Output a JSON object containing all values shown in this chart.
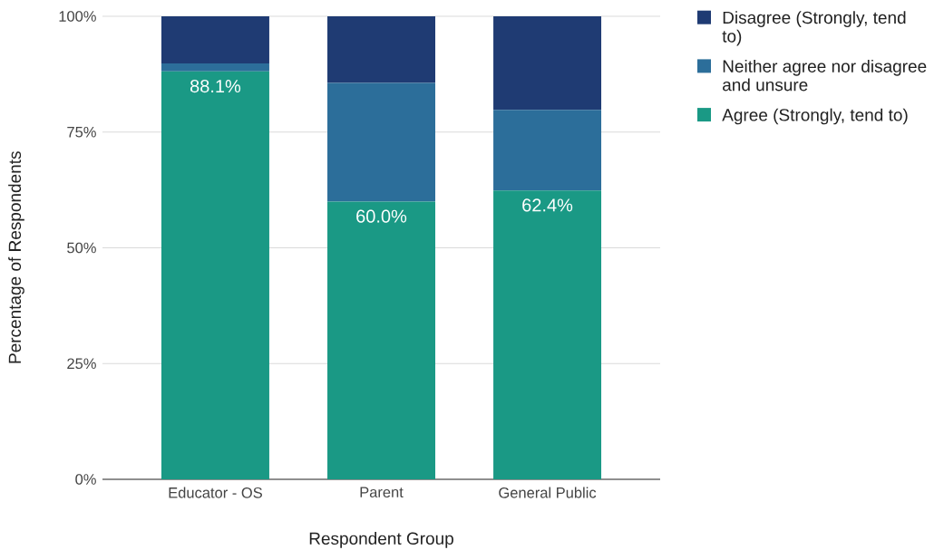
{
  "chart_data": {
    "type": "bar",
    "stacked": true,
    "xlabel": "Respondent Group",
    "ylabel": "Percentage of Respondents",
    "categories": [
      "Educator - OS",
      "Parent",
      "General Public"
    ],
    "series": [
      {
        "name": "Agree (Strongly, tend to)",
        "color": "#1a9985",
        "values": [
          88.1,
          60.0,
          62.4
        ],
        "value_labels": [
          "88.1%",
          "60.0%",
          "62.4%"
        ]
      },
      {
        "name": "Neither agree nor disagree and unsure",
        "color": "#2c6e9a",
        "values": [
          1.7,
          25.6,
          17.4
        ]
      },
      {
        "name": "Disagree (Strongly, tend to)",
        "color": "#1f3b73",
        "values": [
          10.2,
          14.4,
          20.2
        ]
      }
    ],
    "ylim": [
      0,
      100
    ],
    "yticks": [
      {
        "value": 0,
        "label": "0%"
      },
      {
        "value": 25,
        "label": "25%"
      },
      {
        "value": 50,
        "label": "50%"
      },
      {
        "value": 75,
        "label": "75%"
      },
      {
        "value": 100,
        "label": "100%"
      }
    ],
    "grid": "y",
    "legend": "top right"
  }
}
